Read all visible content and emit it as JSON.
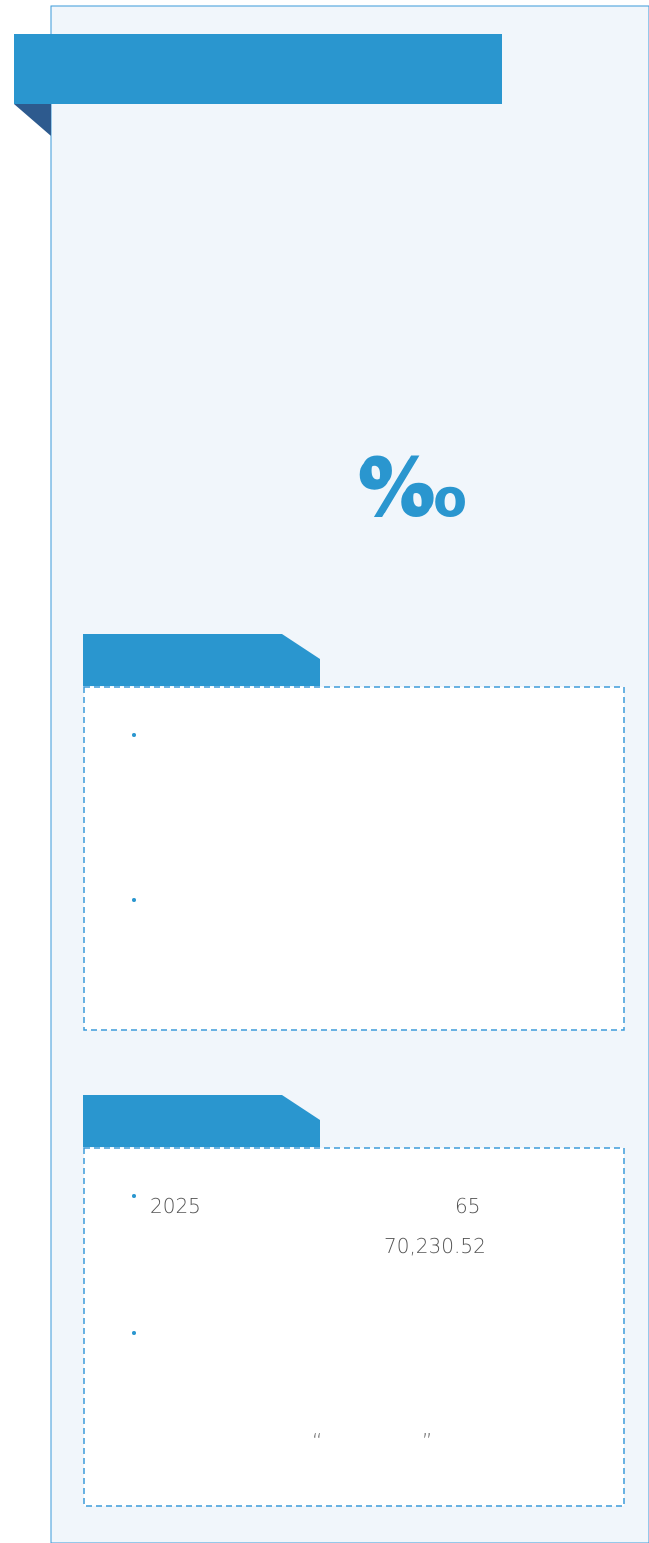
{
  "header": {
    "symbols": [
      "%",
      "‰"
    ]
  },
  "section2": {
    "year": "2025",
    "number": "65",
    "amount": "70,230.52",
    "quotes": [
      "“",
      "”"
    ]
  }
}
